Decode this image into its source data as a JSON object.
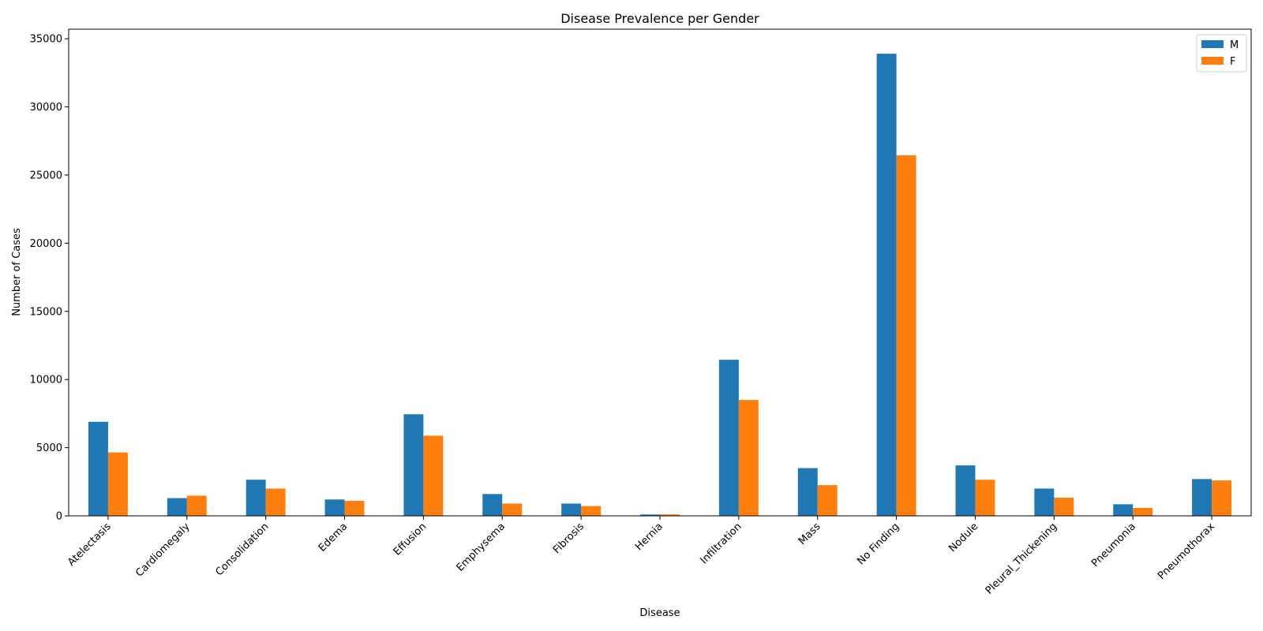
{
  "chart_data": {
    "type": "bar",
    "title": "Disease Prevalence per Gender",
    "xlabel": "Disease",
    "ylabel": "Number of Cases",
    "categories": [
      "Atelectasis",
      "Cardiomegaly",
      "Consolidation",
      "Edema",
      "Effusion",
      "Emphysema",
      "Fibrosis",
      "Hernia",
      "Infiltration",
      "Mass",
      "No Finding",
      "Nodule",
      "Pleural_Thickening",
      "Pneumonia",
      "Pneumothorax"
    ],
    "series": [
      {
        "name": "M",
        "color": "#1f77b4",
        "values": [
          6900,
          1300,
          2650,
          1200,
          7450,
          1600,
          900,
          100,
          11450,
          3500,
          33900,
          3700,
          2000,
          850,
          2700
        ]
      },
      {
        "name": "F",
        "color": "#ff7f0e",
        "values": [
          4650,
          1480,
          2000,
          1100,
          5880,
          900,
          720,
          110,
          8500,
          2250,
          26450,
          2650,
          1330,
          580,
          2600
        ]
      }
    ],
    "ylim": [
      0,
      35700
    ],
    "yticks": [
      0,
      5000,
      10000,
      15000,
      20000,
      25000,
      30000,
      35000
    ],
    "grid": false,
    "legend_position": "top-right"
  }
}
